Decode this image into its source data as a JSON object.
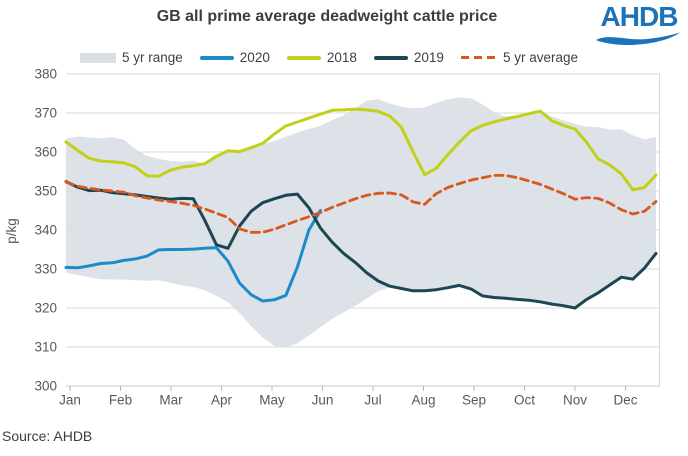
{
  "title": "GB all prime average deadweight cattle price",
  "logo": {
    "text": "AHDB",
    "color": "#1c73b9"
  },
  "source": "Source: AHDB",
  "chart_data": {
    "type": "line",
    "title": "GB all prime average deadweight cattle price",
    "xlabel": "",
    "ylabel": "p/kg",
    "ylim": [
      300,
      380
    ],
    "ytick_step": 10,
    "grid": "horizontal",
    "legend_position": "top",
    "x_resolution": "weekly, 52 points spanning Jan to Dec",
    "months": [
      "Jan",
      "Feb",
      "Mar",
      "Apr",
      "May",
      "Jun",
      "Jul",
      "Aug",
      "Sep",
      "Oct",
      "Nov",
      "Dec"
    ],
    "legend_items": [
      {
        "label": "5 yr range",
        "kind": "band",
        "color": "#d8dfe5"
      },
      {
        "label": "2020",
        "kind": "line",
        "color": "#1d8bca"
      },
      {
        "label": "2018",
        "kind": "line",
        "color": "#c2d118"
      },
      {
        "label": "2019",
        "kind": "line",
        "color": "#1c4653"
      },
      {
        "label": "5 yr average",
        "kind": "dash",
        "color": "#d8581e"
      }
    ],
    "band": {
      "name": "5 yr range",
      "color": "#d8dfe5",
      "top": [
        363.4,
        364.0,
        363.7,
        363.5,
        363.8,
        363.2,
        360.8,
        359.0,
        358.2,
        357.7,
        357.5,
        357.8,
        357.0,
        358.5,
        359.9,
        359.9,
        360.9,
        362.0,
        362.8,
        363.9,
        365.0,
        365.9,
        366.7,
        368.2,
        369.4,
        371.2,
        373.2,
        373.6,
        372.4,
        371.6,
        371.2,
        371.4,
        372.6,
        373.5,
        374.0,
        373.8,
        372.2,
        370.2,
        369.1,
        369.3,
        370.0,
        370.7,
        369.1,
        368.1,
        367.2,
        366.5,
        366.4,
        365.7,
        365.8,
        364.3,
        363.2,
        363.9
      ],
      "bottom": [
        329.0,
        328.5,
        327.9,
        327.4,
        327.3,
        327.3,
        327.1,
        327.0,
        327.1,
        326.5,
        325.8,
        325.4,
        324.5,
        323.1,
        321.5,
        318.7,
        315.3,
        312.4,
        310.3,
        309.8,
        311.0,
        312.9,
        315.1,
        317.2,
        318.9,
        320.6,
        322.4,
        324.4,
        325.3,
        324.6,
        324.0,
        324.1,
        324.4,
        324.9,
        325.5,
        324.6,
        322.8,
        322.4,
        322.2,
        321.9,
        321.7,
        321.3,
        320.7,
        320.3,
        319.7,
        321.9,
        323.6,
        325.6,
        327.6,
        327.1,
        329.9,
        333.7
      ]
    },
    "series": [
      {
        "name": "2020",
        "color": "#1d8bca",
        "dash": false,
        "values": [
          330.4,
          330.3,
          330.8,
          331.4,
          331.6,
          332.2,
          332.6,
          333.3,
          334.9,
          335.0,
          335.0,
          335.1,
          335.3,
          335.5,
          332.0,
          326.4,
          323.4,
          321.8,
          322.1,
          323.2,
          330.5,
          340.0,
          345.0
        ]
      },
      {
        "name": "2018",
        "color": "#c2d118",
        "dash": false,
        "values": [
          362.6,
          360.4,
          358.4,
          357.7,
          357.5,
          357.2,
          356.2,
          353.9,
          353.8,
          355.3,
          356.1,
          356.5,
          357.0,
          358.9,
          360.3,
          360.1,
          361.1,
          362.2,
          364.6,
          366.7,
          367.7,
          368.7,
          369.7,
          370.7,
          370.8,
          371.0,
          370.8,
          370.4,
          369.2,
          366.3,
          360.0,
          354.2,
          355.8,
          359.3,
          362.5,
          365.4,
          366.8,
          367.7,
          368.5,
          369.1,
          369.8,
          370.5,
          368.0,
          366.8,
          365.9,
          362.5,
          358.2,
          356.7,
          354.4,
          350.3,
          350.9,
          354.1
        ]
      },
      {
        "name": "2019",
        "color": "#1c4653",
        "dash": false,
        "values": [
          352.4,
          351.0,
          350.1,
          350.2,
          349.6,
          349.3,
          349.0,
          348.6,
          348.2,
          347.9,
          348.1,
          348.0,
          342.5,
          336.2,
          335.3,
          341.0,
          344.8,
          347.0,
          348.0,
          348.9,
          349.2,
          345.7,
          340.5,
          336.9,
          334.0,
          331.7,
          329.0,
          326.9,
          325.6,
          325.0,
          324.4,
          324.4,
          324.7,
          325.2,
          325.8,
          324.9,
          323.1,
          322.7,
          322.5,
          322.2,
          322.0,
          321.6,
          321.0,
          320.6,
          320.0,
          322.2,
          323.9,
          325.9,
          327.9,
          327.4,
          330.2,
          334.0
        ]
      },
      {
        "name": "5 yr average",
        "color": "#d8581e",
        "dash": true,
        "values": [
          352.3,
          351.2,
          350.7,
          350.3,
          350.0,
          349.7,
          348.8,
          348.2,
          347.7,
          347.3,
          346.9,
          346.3,
          345.4,
          344.3,
          343.2,
          340.3,
          339.4,
          339.4,
          340.2,
          341.3,
          342.4,
          343.4,
          344.5,
          345.8,
          346.9,
          348.0,
          348.9,
          349.4,
          349.5,
          349.0,
          347.2,
          346.6,
          349.3,
          350.9,
          351.9,
          352.8,
          353.4,
          354.0,
          354.0,
          353.4,
          352.6,
          351.7,
          350.5,
          349.3,
          347.9,
          348.3,
          348.1,
          346.9,
          345.2,
          344.1,
          344.8,
          347.3
        ]
      }
    ]
  }
}
